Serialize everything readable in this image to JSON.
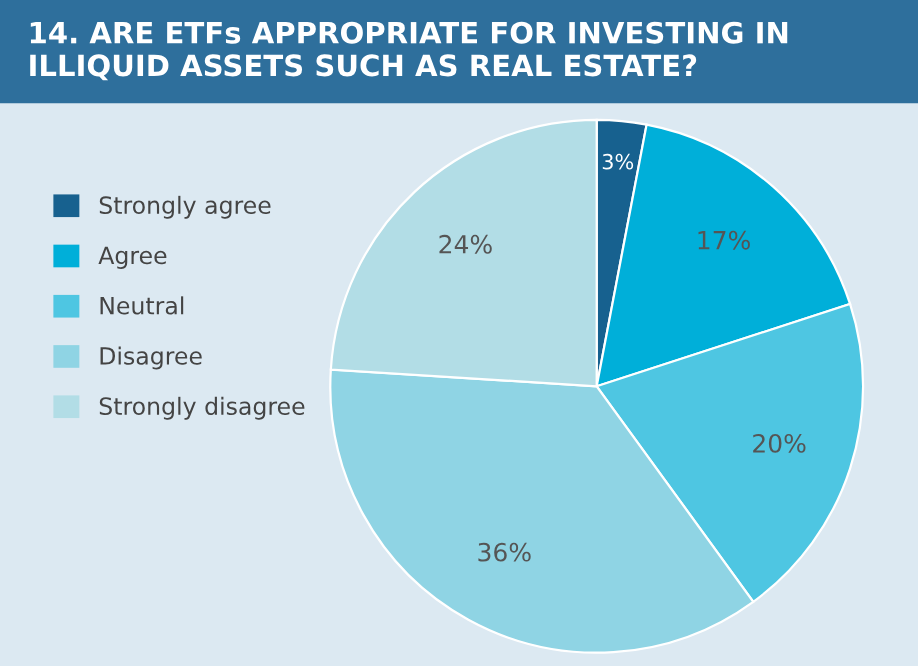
{
  "chart_data": {
    "type": "pie",
    "title": "14. ARE ETFs APPROPRIATE FOR INVESTING IN ILLIQUID ASSETS SUCH AS REAL ESTATE?",
    "categories": [
      "Strongly agree",
      "Agree",
      "Neutral",
      "Disagree",
      "Strongly disagree"
    ],
    "values": [
      3,
      17,
      20,
      36,
      24
    ],
    "value_labels": [
      "3%",
      "17%",
      "20%",
      "36%",
      "24%"
    ],
    "colors": [
      "#17618f",
      "#00afd9",
      "#4ec6e2",
      "#8fd4e4",
      "#b2dde6"
    ],
    "legend": "left"
  }
}
